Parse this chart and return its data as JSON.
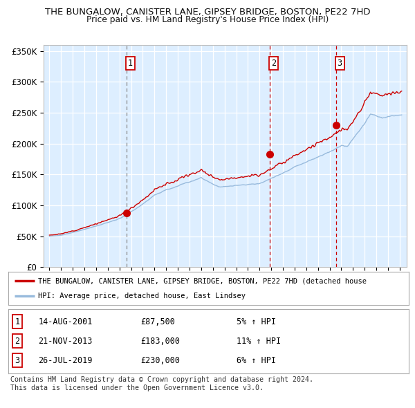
{
  "title": "THE BUNGALOW, CANISTER LANE, GIPSEY BRIDGE, BOSTON, PE22 7HD",
  "subtitle": "Price paid vs. HM Land Registry's House Price Index (HPI)",
  "ylim": [
    0,
    360000
  ],
  "yticks": [
    0,
    50000,
    100000,
    150000,
    200000,
    250000,
    300000,
    350000
  ],
  "ytick_labels": [
    "£0",
    "£50K",
    "£100K",
    "£150K",
    "£200K",
    "£250K",
    "£300K",
    "£350K"
  ],
  "background_color": "#ddeeff",
  "grid_color": "#ffffff",
  "red_line_color": "#cc0000",
  "blue_line_color": "#99bbdd",
  "sale_dates": [
    2001.62,
    2013.89,
    2019.56
  ],
  "sale_prices": [
    87500,
    183000,
    230000
  ],
  "sale_labels": [
    "1",
    "2",
    "3"
  ],
  "legend_label_red": "THE BUNGALOW, CANISTER LANE, GIPSEY BRIDGE, BOSTON, PE22 7HD (detached house",
  "legend_label_blue": "HPI: Average price, detached house, East Lindsey",
  "table_rows": [
    [
      "1",
      "14-AUG-2001",
      "£87,500",
      "5% ↑ HPI"
    ],
    [
      "2",
      "21-NOV-2013",
      "£183,000",
      "11% ↑ HPI"
    ],
    [
      "3",
      "26-JUL-2019",
      "£230,000",
      "6% ↑ HPI"
    ]
  ],
  "footer": "Contains HM Land Registry data © Crown copyright and database right 2024.\nThis data is licensed under the Open Government Licence v3.0."
}
